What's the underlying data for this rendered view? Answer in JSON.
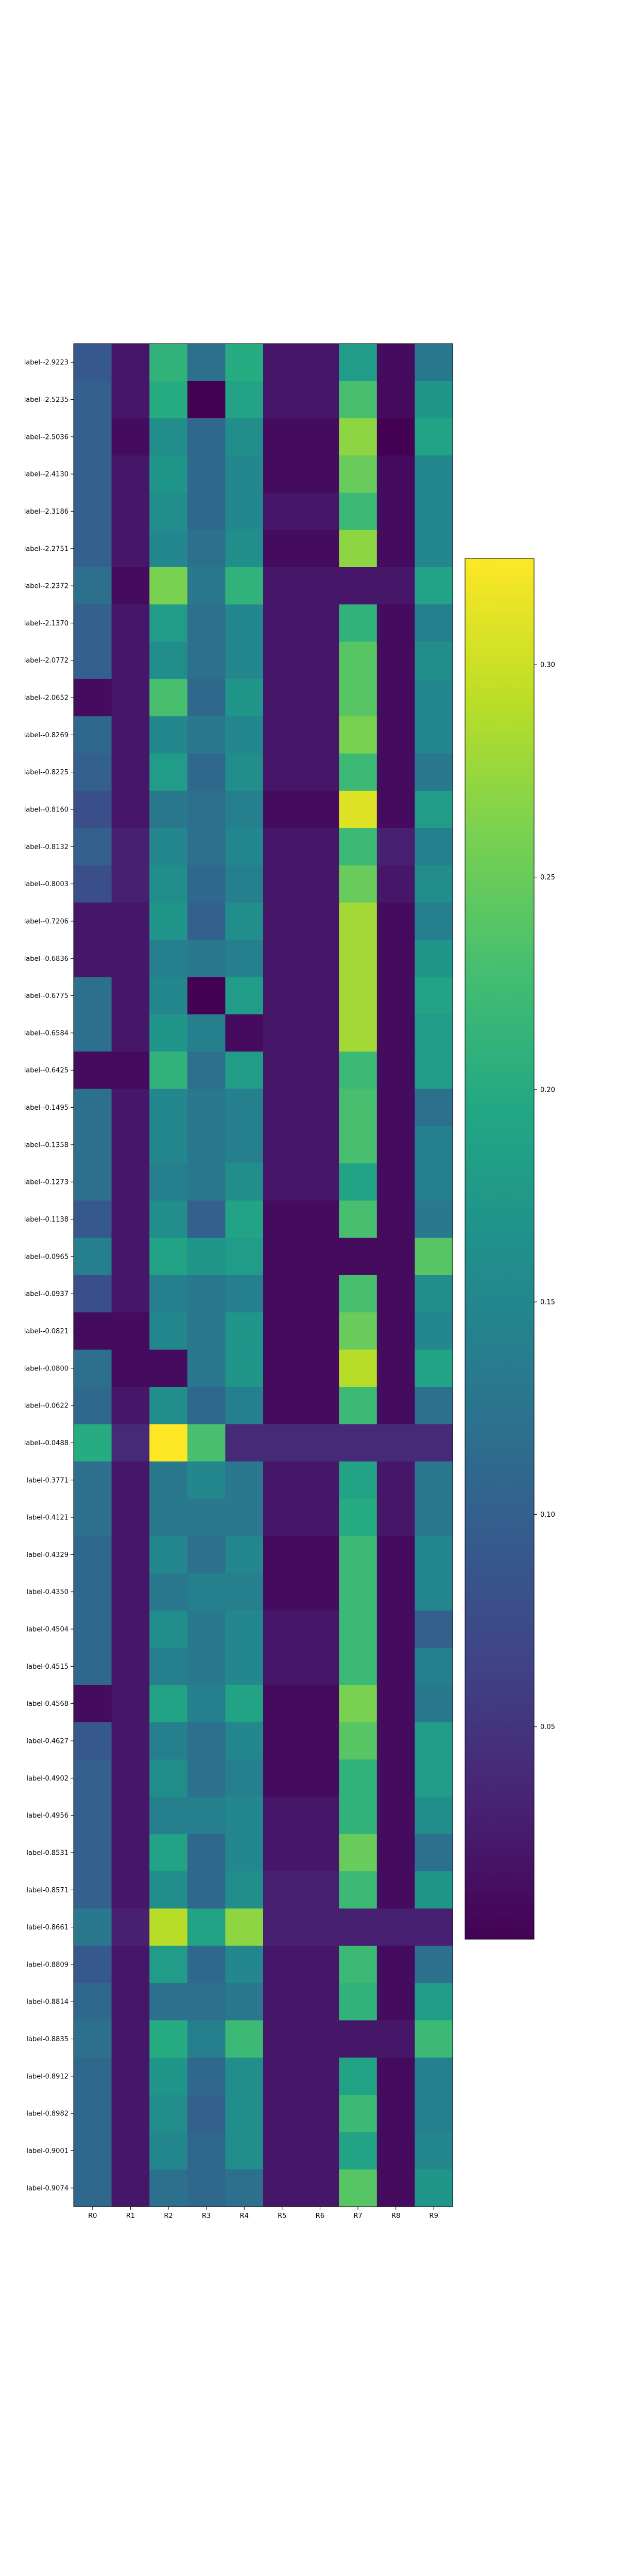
{
  "chart_data": {
    "type": "heatmap",
    "title": "",
    "xlabel": "",
    "ylabel": "",
    "colormap": "viridis",
    "vmin": 0.0,
    "vmax": 0.325,
    "x_categories": [
      "R0",
      "R1",
      "R2",
      "R3",
      "R4",
      "R5",
      "R6",
      "R7",
      "R8",
      "R9"
    ],
    "y_categories": [
      "label--2.9223",
      "label--2.5235",
      "label--2.5036",
      "label--2.4130",
      "label--2.3186",
      "label--2.2751",
      "label--2.2372",
      "label--2.1370",
      "label--2.0772",
      "label--2.0652",
      "label--0.8269",
      "label--0.8225",
      "label--0.8160",
      "label--0.8132",
      "label--0.8003",
      "label--0.7206",
      "label--0.6836",
      "label--0.6775",
      "label--0.6584",
      "label--0.6425",
      "label--0.1495",
      "label--0.1358",
      "label--0.1273",
      "label--0.1138",
      "label--0.0965",
      "label--0.0937",
      "label--0.0821",
      "label--0.0800",
      "label--0.0622",
      "label--0.0488",
      "label-0.3771",
      "label-0.4121",
      "label-0.4329",
      "label-0.4350",
      "label-0.4504",
      "label-0.4515",
      "label-0.4568",
      "label-0.4627",
      "label-0.4902",
      "label-0.4956",
      "label-0.8531",
      "label-0.8571",
      "label-0.8661",
      "label-0.8809",
      "label-0.8814",
      "label-0.8835",
      "label-0.8912",
      "label-0.8982",
      "label-0.9001",
      "label-0.9074"
    ],
    "values": [
      [
        0.09,
        0.02,
        0.21,
        0.12,
        0.2,
        0.02,
        0.02,
        0.18,
        0.01,
        0.13
      ],
      [
        0.1,
        0.02,
        0.2,
        0.0,
        0.19,
        0.02,
        0.02,
        0.23,
        0.01,
        0.17
      ],
      [
        0.1,
        0.01,
        0.16,
        0.11,
        0.16,
        0.01,
        0.01,
        0.27,
        0.0,
        0.19
      ],
      [
        0.1,
        0.02,
        0.17,
        0.11,
        0.15,
        0.01,
        0.01,
        0.25,
        0.01,
        0.15
      ],
      [
        0.1,
        0.02,
        0.16,
        0.11,
        0.15,
        0.02,
        0.02,
        0.22,
        0.01,
        0.15
      ],
      [
        0.1,
        0.02,
        0.15,
        0.12,
        0.16,
        0.01,
        0.01,
        0.27,
        0.01,
        0.15
      ],
      [
        0.12,
        0.01,
        0.26,
        0.13,
        0.21,
        0.02,
        0.02,
        0.02,
        0.02,
        0.19
      ],
      [
        0.1,
        0.02,
        0.18,
        0.12,
        0.15,
        0.02,
        0.02,
        0.21,
        0.01,
        0.14
      ],
      [
        0.1,
        0.02,
        0.16,
        0.12,
        0.15,
        0.02,
        0.02,
        0.24,
        0.01,
        0.16
      ],
      [
        0.01,
        0.02,
        0.23,
        0.11,
        0.17,
        0.02,
        0.02,
        0.24,
        0.01,
        0.15
      ],
      [
        0.11,
        0.02,
        0.15,
        0.13,
        0.15,
        0.02,
        0.02,
        0.26,
        0.01,
        0.15
      ],
      [
        0.1,
        0.02,
        0.18,
        0.11,
        0.16,
        0.02,
        0.02,
        0.22,
        0.01,
        0.13
      ],
      [
        0.08,
        0.02,
        0.13,
        0.12,
        0.14,
        0.01,
        0.01,
        0.31,
        0.01,
        0.18
      ],
      [
        0.1,
        0.03,
        0.15,
        0.12,
        0.15,
        0.02,
        0.02,
        0.22,
        0.03,
        0.14
      ],
      [
        0.08,
        0.03,
        0.16,
        0.11,
        0.14,
        0.02,
        0.02,
        0.25,
        0.02,
        0.16
      ],
      [
        0.02,
        0.02,
        0.17,
        0.1,
        0.16,
        0.02,
        0.02,
        0.28,
        0.01,
        0.14
      ],
      [
        0.02,
        0.02,
        0.14,
        0.13,
        0.14,
        0.02,
        0.02,
        0.28,
        0.01,
        0.17
      ],
      [
        0.12,
        0.02,
        0.15,
        0.0,
        0.18,
        0.02,
        0.02,
        0.28,
        0.01,
        0.19
      ],
      [
        0.12,
        0.02,
        0.17,
        0.14,
        0.01,
        0.02,
        0.02,
        0.28,
        0.01,
        0.18
      ],
      [
        0.01,
        0.01,
        0.21,
        0.12,
        0.18,
        0.02,
        0.02,
        0.22,
        0.01,
        0.18
      ],
      [
        0.12,
        0.02,
        0.15,
        0.13,
        0.14,
        0.02,
        0.02,
        0.23,
        0.01,
        0.12
      ],
      [
        0.12,
        0.02,
        0.15,
        0.13,
        0.14,
        0.02,
        0.02,
        0.23,
        0.01,
        0.14
      ],
      [
        0.12,
        0.02,
        0.14,
        0.13,
        0.16,
        0.02,
        0.02,
        0.19,
        0.01,
        0.14
      ],
      [
        0.09,
        0.02,
        0.16,
        0.1,
        0.19,
        0.01,
        0.01,
        0.23,
        0.01,
        0.13
      ],
      [
        0.14,
        0.02,
        0.19,
        0.17,
        0.18,
        0.01,
        0.01,
        0.01,
        0.01,
        0.24
      ],
      [
        0.08,
        0.02,
        0.14,
        0.13,
        0.14,
        0.01,
        0.01,
        0.23,
        0.01,
        0.16
      ],
      [
        0.01,
        0.01,
        0.15,
        0.13,
        0.17,
        0.01,
        0.01,
        0.25,
        0.01,
        0.15
      ],
      [
        0.12,
        0.01,
        0.01,
        0.13,
        0.17,
        0.01,
        0.01,
        0.29,
        0.01,
        0.19
      ],
      [
        0.11,
        0.02,
        0.16,
        0.11,
        0.14,
        0.01,
        0.01,
        0.22,
        0.01,
        0.12
      ],
      [
        0.2,
        0.04,
        0.325,
        0.23,
        0.04,
        0.04,
        0.04,
        0.04,
        0.04,
        0.04
      ],
      [
        0.12,
        0.02,
        0.13,
        0.15,
        0.13,
        0.02,
        0.02,
        0.19,
        0.02,
        0.13
      ],
      [
        0.12,
        0.02,
        0.13,
        0.13,
        0.13,
        0.02,
        0.02,
        0.2,
        0.02,
        0.13
      ],
      [
        0.11,
        0.02,
        0.15,
        0.12,
        0.15,
        0.01,
        0.01,
        0.22,
        0.01,
        0.15
      ],
      [
        0.11,
        0.02,
        0.13,
        0.14,
        0.14,
        0.01,
        0.01,
        0.22,
        0.01,
        0.15
      ],
      [
        0.11,
        0.02,
        0.16,
        0.13,
        0.15,
        0.02,
        0.02,
        0.22,
        0.01,
        0.1
      ],
      [
        0.11,
        0.02,
        0.14,
        0.13,
        0.15,
        0.02,
        0.02,
        0.22,
        0.01,
        0.14
      ],
      [
        0.01,
        0.02,
        0.19,
        0.14,
        0.19,
        0.01,
        0.01,
        0.26,
        0.01,
        0.13
      ],
      [
        0.09,
        0.02,
        0.14,
        0.12,
        0.15,
        0.01,
        0.01,
        0.24,
        0.01,
        0.18
      ],
      [
        0.1,
        0.02,
        0.16,
        0.12,
        0.14,
        0.01,
        0.01,
        0.21,
        0.01,
        0.18
      ],
      [
        0.1,
        0.02,
        0.14,
        0.14,
        0.15,
        0.02,
        0.02,
        0.21,
        0.01,
        0.16
      ],
      [
        0.1,
        0.02,
        0.19,
        0.11,
        0.15,
        0.02,
        0.02,
        0.25,
        0.01,
        0.12
      ],
      [
        0.1,
        0.02,
        0.16,
        0.11,
        0.16,
        0.03,
        0.03,
        0.22,
        0.01,
        0.17
      ],
      [
        0.13,
        0.03,
        0.29,
        0.19,
        0.27,
        0.03,
        0.03,
        0.03,
        0.03,
        0.03
      ],
      [
        0.09,
        0.02,
        0.18,
        0.11,
        0.15,
        0.02,
        0.02,
        0.22,
        0.01,
        0.12
      ],
      [
        0.11,
        0.02,
        0.12,
        0.12,
        0.13,
        0.02,
        0.02,
        0.21,
        0.01,
        0.18
      ],
      [
        0.12,
        0.02,
        0.2,
        0.14,
        0.22,
        0.02,
        0.02,
        0.02,
        0.02,
        0.22
      ],
      [
        0.11,
        0.02,
        0.17,
        0.11,
        0.16,
        0.02,
        0.02,
        0.19,
        0.01,
        0.14
      ],
      [
        0.11,
        0.02,
        0.16,
        0.1,
        0.16,
        0.02,
        0.02,
        0.22,
        0.01,
        0.14
      ],
      [
        0.11,
        0.02,
        0.15,
        0.11,
        0.16,
        0.02,
        0.02,
        0.19,
        0.01,
        0.15
      ],
      [
        0.11,
        0.02,
        0.12,
        0.11,
        0.12,
        0.02,
        0.02,
        0.24,
        0.01,
        0.17
      ]
    ],
    "colorbar": {
      "ticks": [
        0.05,
        0.1,
        0.15,
        0.2,
        0.25,
        0.3
      ],
      "tick_labels": [
        "0.05",
        "0.10",
        "0.15",
        "0.20",
        "0.25",
        "0.30"
      ]
    },
    "legend": "colorbar-right",
    "grid": false
  }
}
